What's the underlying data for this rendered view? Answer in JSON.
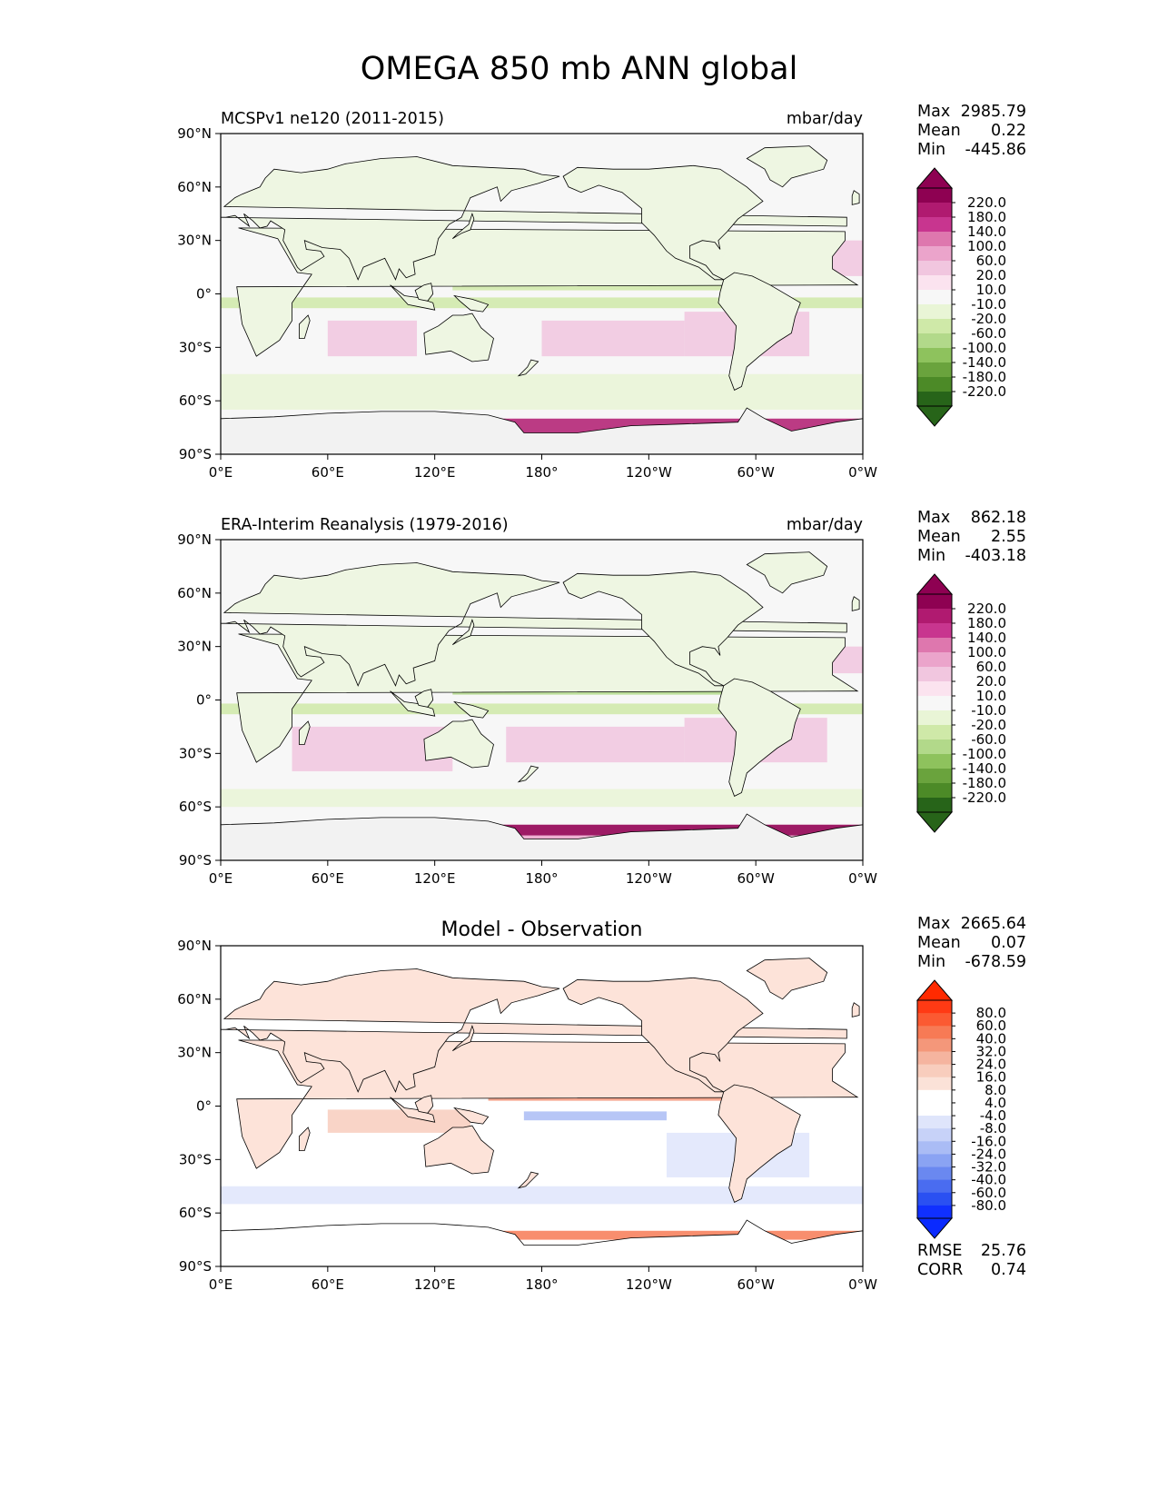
{
  "title": "OMEGA 850 mb ANN global",
  "chart_data": [
    {
      "type": "heatmap",
      "panel_title": "",
      "left_title": "MCSPv1 ne120 (2011-2015)",
      "units": "mbar/day",
      "x_ticks": [
        "0°E",
        "60°E",
        "120°E",
        "180°",
        "120°W",
        "60°W",
        "0°W"
      ],
      "y_ticks": [
        "90°N",
        "60°N",
        "30°N",
        "0°",
        "30°S",
        "60°S",
        "90°S"
      ],
      "stats": [
        {
          "label": "Max",
          "value": "2985.79"
        },
        {
          "label": "Mean",
          "value": "0.22"
        },
        {
          "label": "Min",
          "value": "-445.86"
        }
      ],
      "colorbar": {
        "extend": "both",
        "labels": [
          "220.0",
          "180.0",
          "140.0",
          "100.0",
          "60.0",
          "20.0",
          "10.0",
          "-10.0",
          "-20.0",
          "-60.0",
          "-100.0",
          "-140.0",
          "-180.0",
          "-220.0"
        ],
        "colors": [
          "#8e0152",
          "#b01a70",
          "#c8358f",
          "#de77ae",
          "#eba4cb",
          "#f1c6df",
          "#fbe3ef",
          "#f7f7f7",
          "#e9f5d6",
          "#cfe9a8",
          "#b2d98a",
          "#8ec25d",
          "#6aa33d",
          "#4c8a27",
          "#276419"
        ],
        "extend_colors": {
          "top": "#8e0152",
          "bottom": "#276419"
        }
      },
      "extra_stats": []
    },
    {
      "type": "heatmap",
      "panel_title": "",
      "left_title": "ERA-Interim Reanalysis (1979-2016)",
      "units": "mbar/day",
      "x_ticks": [
        "0°E",
        "60°E",
        "120°E",
        "180°",
        "120°W",
        "60°W",
        "0°W"
      ],
      "y_ticks": [
        "90°N",
        "60°N",
        "30°N",
        "0°",
        "30°S",
        "60°S",
        "90°S"
      ],
      "stats": [
        {
          "label": "Max",
          "value": "862.18"
        },
        {
          "label": "Mean",
          "value": "2.55"
        },
        {
          "label": "Min",
          "value": "-403.18"
        }
      ],
      "colorbar": {
        "extend": "both",
        "labels": [
          "220.0",
          "180.0",
          "140.0",
          "100.0",
          "60.0",
          "20.0",
          "10.0",
          "-10.0",
          "-20.0",
          "-60.0",
          "-100.0",
          "-140.0",
          "-180.0",
          "-220.0"
        ],
        "colors": [
          "#8e0152",
          "#b01a70",
          "#c8358f",
          "#de77ae",
          "#eba4cb",
          "#f1c6df",
          "#fbe3ef",
          "#f7f7f7",
          "#e9f5d6",
          "#cfe9a8",
          "#b2d98a",
          "#8ec25d",
          "#6aa33d",
          "#4c8a27",
          "#276419"
        ],
        "extend_colors": {
          "top": "#8e0152",
          "bottom": "#276419"
        }
      },
      "extra_stats": []
    },
    {
      "type": "heatmap",
      "panel_title": "Model - Observation",
      "left_title": "",
      "units": "",
      "x_ticks": [
        "0°E",
        "60°E",
        "120°E",
        "180°",
        "120°W",
        "60°W",
        "0°W"
      ],
      "y_ticks": [
        "90°N",
        "60°N",
        "30°N",
        "0°",
        "30°S",
        "60°S",
        "90°S"
      ],
      "stats": [
        {
          "label": "Max",
          "value": "2665.64"
        },
        {
          "label": "Mean",
          "value": "0.07"
        },
        {
          "label": "Min",
          "value": "-678.59"
        }
      ],
      "colorbar": {
        "extend": "both",
        "labels": [
          "80.0",
          "60.0",
          "40.0",
          "32.0",
          "24.0",
          "16.0",
          "8.0",
          "4.0",
          "-4.0",
          "-8.0",
          "-16.0",
          "-24.0",
          "-32.0",
          "-40.0",
          "-60.0",
          "-80.0"
        ],
        "colors": [
          "#ff3a14",
          "#fb5a32",
          "#f77a55",
          "#f4977a",
          "#f5b49f",
          "#f8cdbd",
          "#fbe2d8",
          "#ffffff",
          "#ffffff",
          "#dfe5fb",
          "#c7d2f8",
          "#aabcf5",
          "#8aa3f3",
          "#6a88f0",
          "#4a6cf0",
          "#2a50f2",
          "#1030ff"
        ],
        "extend_colors": {
          "top": "#ff2a00",
          "bottom": "#0a2aff"
        }
      },
      "extra_stats": [
        {
          "label": "RMSE",
          "value": "25.76"
        },
        {
          "label": "CORR",
          "value": "0.74"
        }
      ]
    }
  ]
}
